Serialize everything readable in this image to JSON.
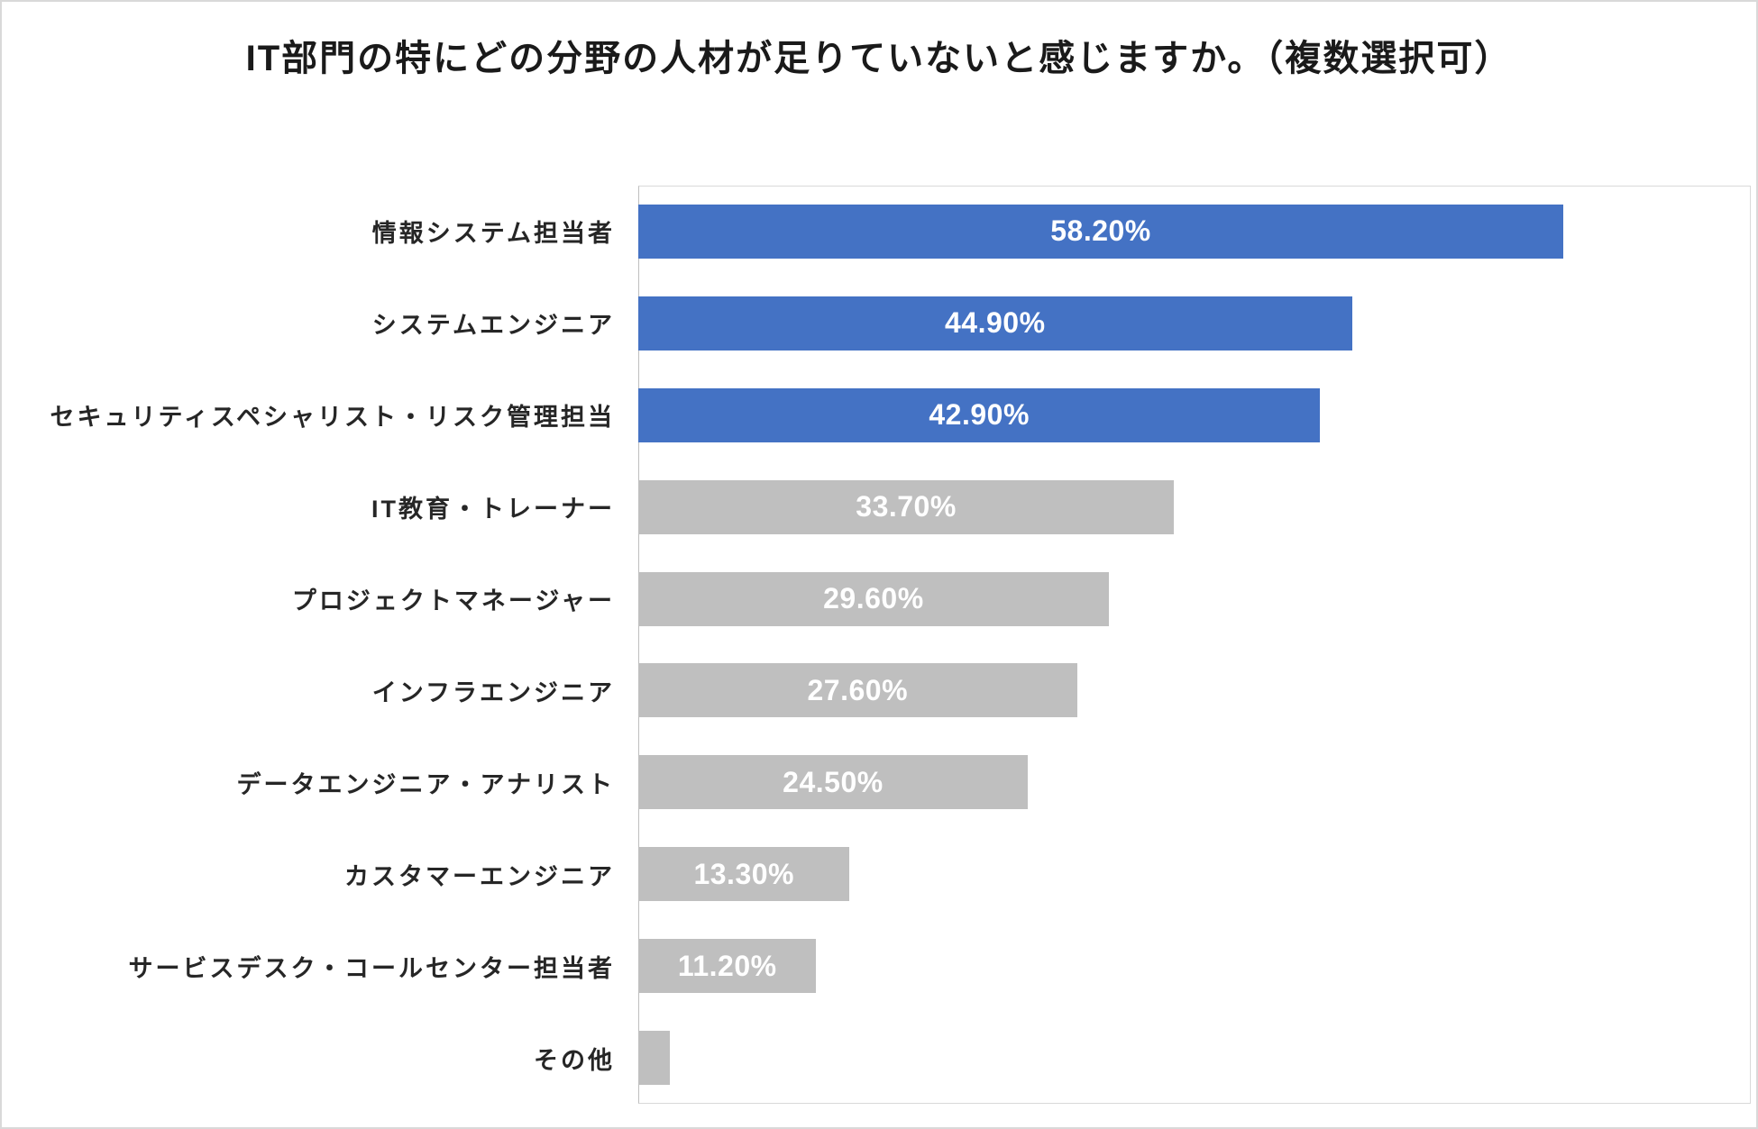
{
  "page": {
    "background": "#ffffff",
    "border_color": "#d9d9d9"
  },
  "chart_data": {
    "type": "bar",
    "orientation": "horizontal",
    "title": "IT部門の特にどの分野の人材が足りていないと感じますか。（複数選択可）",
    "categories": [
      "情報システム担当者",
      "システムエンジニア",
      "セキュリティスペシャリスト・リスク管理担当",
      "IT教育・トレーナー",
      "プロジェクトマネージャー",
      "インフラエンジニア",
      "データエンジニア・アナリスト",
      "カスタマーエンジニア",
      "サービスデスク・コールセンター担当者",
      "その他"
    ],
    "values": [
      58.2,
      44.9,
      42.9,
      33.7,
      29.6,
      27.6,
      24.5,
      13.3,
      11.2,
      2.0
    ],
    "value_labels": [
      "58.20%",
      "44.90%",
      "42.90%",
      "33.70%",
      "29.60%",
      "27.60%",
      "24.50%",
      "13.30%",
      "11.20%",
      ""
    ],
    "bar_colors": [
      "#4472C4",
      "#4472C4",
      "#4472C4",
      "#BFBFBF",
      "#BFBFBF",
      "#BFBFBF",
      "#BFBFBF",
      "#BFBFBF",
      "#BFBFBF",
      "#BFBFBF"
    ],
    "accent_blue": "#4472C4",
    "neutral_gray": "#BFBFBF",
    "value_label_color": "#ffffff",
    "xlabel": "",
    "ylabel": "",
    "xlim": [
      0,
      70
    ],
    "grid": false,
    "legend": false,
    "legend_position": "none"
  }
}
